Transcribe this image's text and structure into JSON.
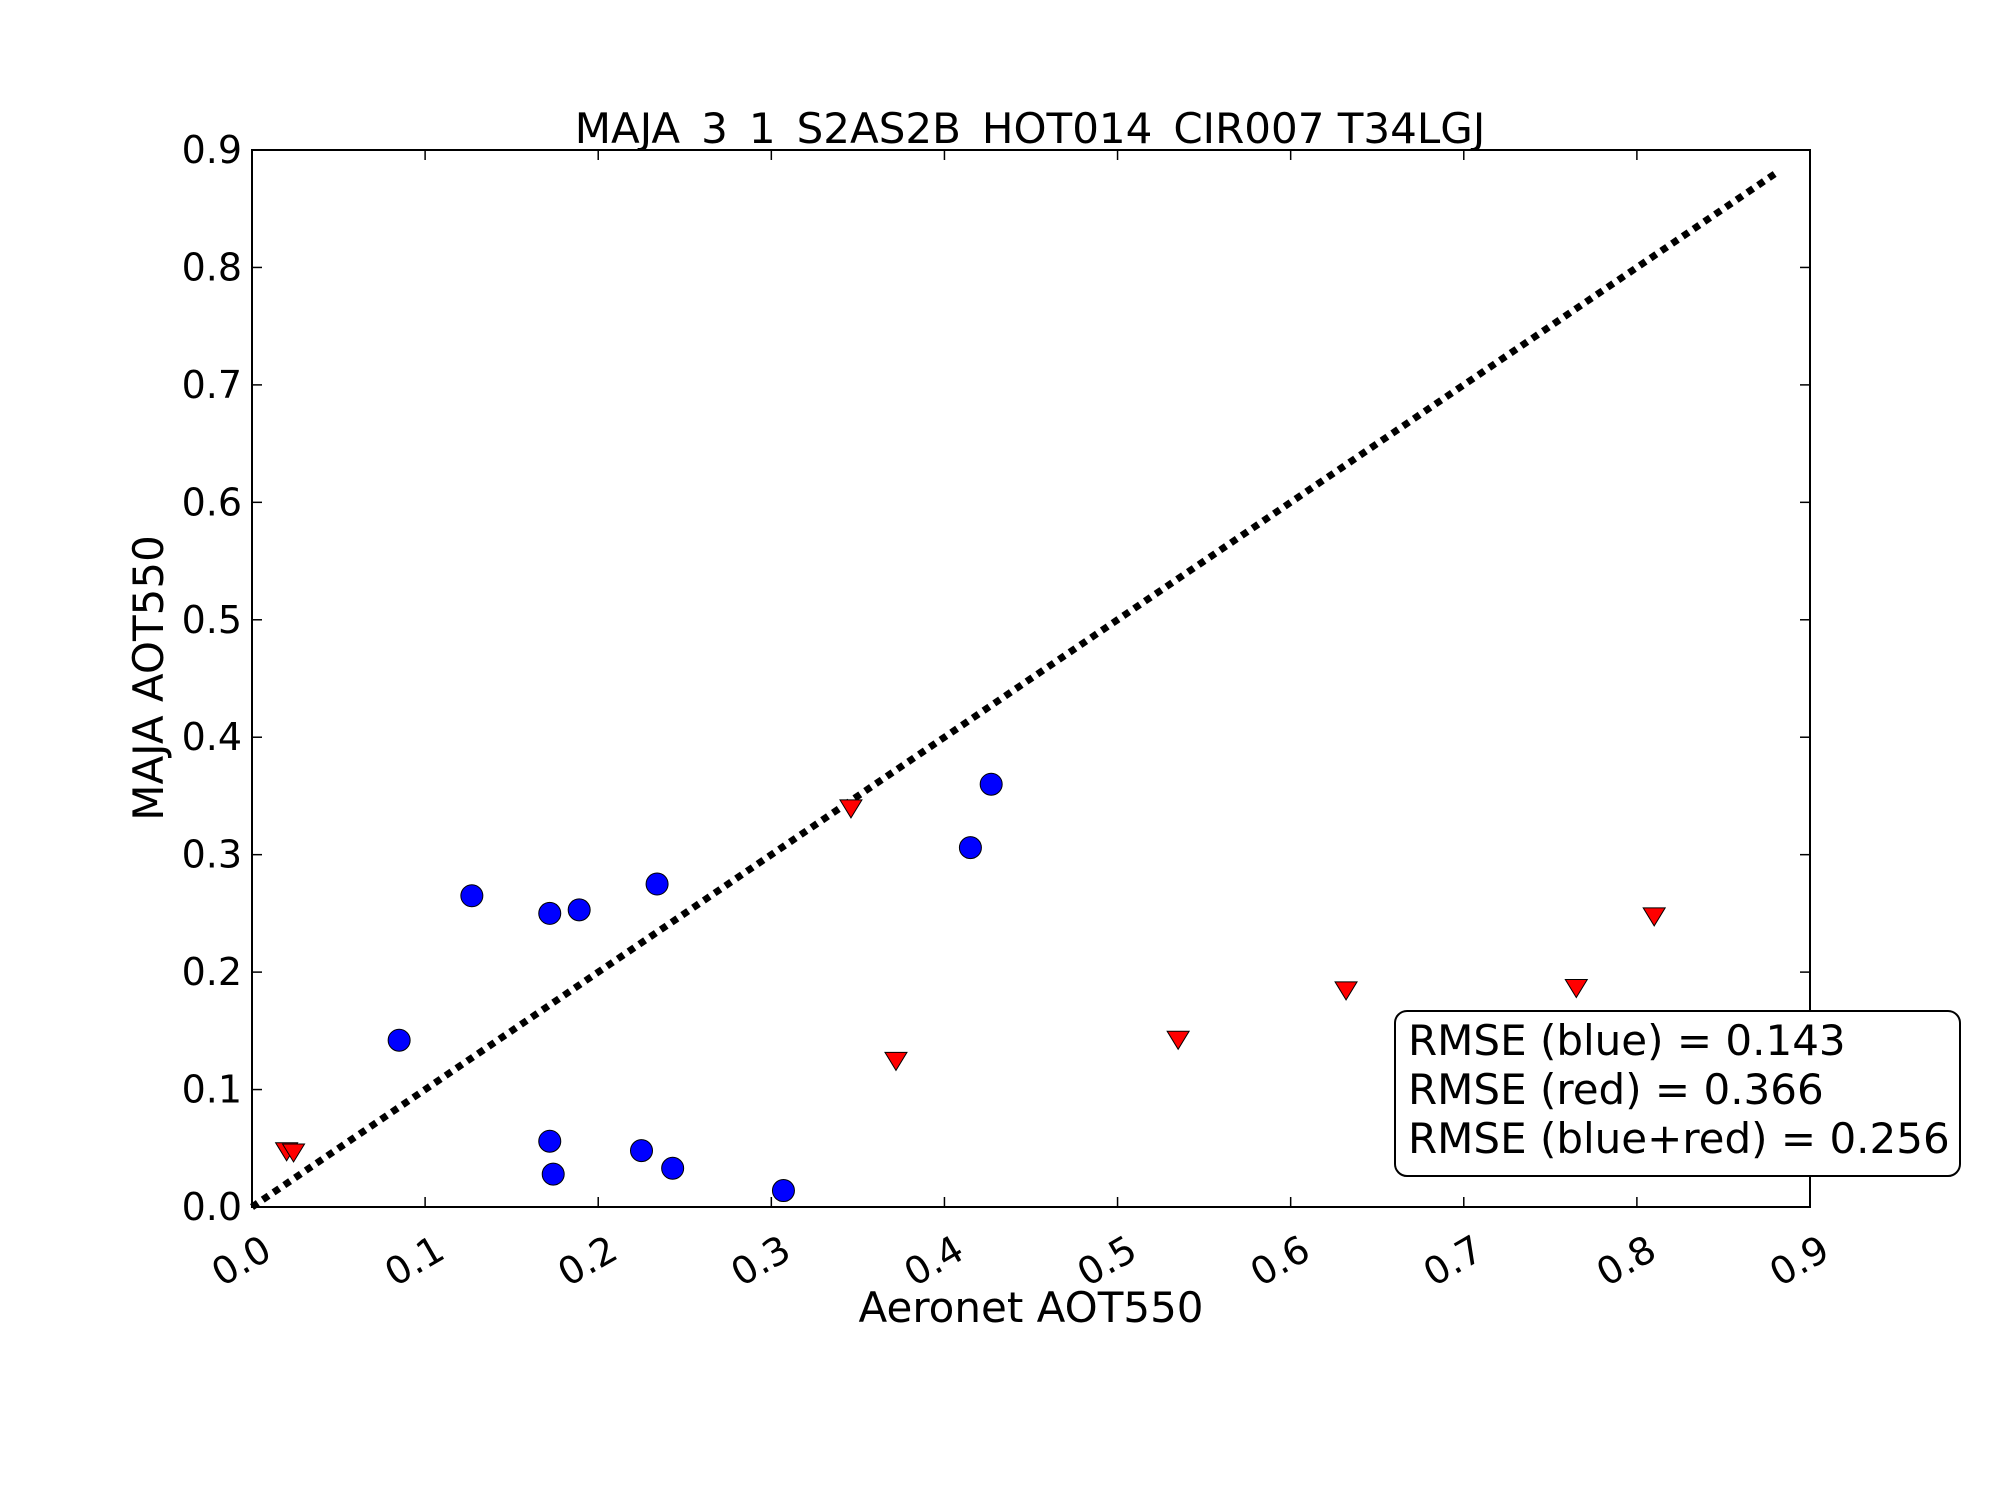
{
  "chart_data": {
    "type": "scatter",
    "title": "MAJA_3_1_S2AS2B_HOT014_CIR007 T34LGJ",
    "xlabel": "Aeronet AOT550",
    "ylabel": "MAJA AOT550",
    "xlim": [
      0.0,
      0.9
    ],
    "ylim": [
      0.0,
      0.9
    ],
    "x_ticks": [
      "0.0",
      "0.1",
      "0.2",
      "0.3",
      "0.4",
      "0.5",
      "0.6",
      "0.7",
      "0.8",
      "0.9"
    ],
    "y_ticks": [
      "0.0",
      "0.1",
      "0.2",
      "0.3",
      "0.4",
      "0.5",
      "0.6",
      "0.7",
      "0.8",
      "0.9"
    ],
    "x_tick_rotation": 30,
    "grid": false,
    "reference_line": {
      "type": "identity",
      "style": "dotted",
      "color": "#000000",
      "from": [
        0.0,
        0.0
      ],
      "to": [
        0.88,
        0.88
      ]
    },
    "series": [
      {
        "marker": "circle",
        "color": "#0000ff",
        "points": [
          {
            "x": 0.085,
            "y": 0.142
          },
          {
            "x": 0.127,
            "y": 0.265
          },
          {
            "x": 0.172,
            "y": 0.25
          },
          {
            "x": 0.189,
            "y": 0.253
          },
          {
            "x": 0.234,
            "y": 0.275
          },
          {
            "x": 0.172,
            "y": 0.056
          },
          {
            "x": 0.174,
            "y": 0.028
          },
          {
            "x": 0.225,
            "y": 0.048
          },
          {
            "x": 0.243,
            "y": 0.033
          },
          {
            "x": 0.307,
            "y": 0.014
          },
          {
            "x": 0.415,
            "y": 0.306
          },
          {
            "x": 0.427,
            "y": 0.36
          }
        ]
      },
      {
        "marker": "triangle-down",
        "color": "#ff0000",
        "points": [
          {
            "x": 0.02,
            "y": 0.047
          },
          {
            "x": 0.024,
            "y": 0.046
          },
          {
            "x": 0.346,
            "y": 0.339
          },
          {
            "x": 0.372,
            "y": 0.124
          },
          {
            "x": 0.535,
            "y": 0.142
          },
          {
            "x": 0.632,
            "y": 0.184
          },
          {
            "x": 0.765,
            "y": 0.186
          },
          {
            "x": 0.81,
            "y": 0.247
          }
        ]
      }
    ],
    "annotation": {
      "placement": "lower-right",
      "lines": [
        "RMSE (blue) = 0.143",
        "RMSE (red) = 0.366",
        "RMSE (blue+red) = 0.256"
      ]
    }
  }
}
